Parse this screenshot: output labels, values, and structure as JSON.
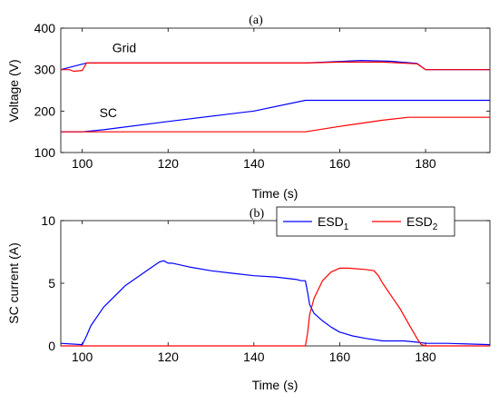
{
  "chart_data": [
    {
      "type": "line",
      "panel_label": "(a)",
      "xlabel": "Time (s)",
      "ylabel": "Voltage (V)",
      "xlim": [
        95,
        195
      ],
      "ylim": [
        100,
        400
      ],
      "xticks": [
        100,
        120,
        140,
        160,
        180
      ],
      "yticks": [
        100,
        200,
        300,
        400
      ],
      "xtick_labels": [
        "100",
        "120",
        "140",
        "160",
        "180"
      ],
      "ytick_labels": [
        "100",
        "200",
        "300",
        "400"
      ],
      "annotations": [
        {
          "text": "Grid",
          "x": 107,
          "y": 342
        },
        {
          "text": "SC",
          "x": 104,
          "y": 185
        }
      ],
      "series": [
        {
          "color": "#0000ff",
          "x": [
            95,
            101,
            152,
            165,
            172,
            178,
            180,
            195
          ],
          "y": [
            300,
            316,
            316,
            322,
            320,
            315,
            300,
            300
          ]
        },
        {
          "color": "#ff0000",
          "x": [
            95,
            97,
            98,
            100,
            101,
            152,
            160,
            170,
            178,
            180,
            195
          ],
          "y": [
            300,
            300,
            296,
            298,
            316,
            316,
            318,
            318,
            314,
            300,
            300
          ]
        },
        {
          "color": "#0000ff",
          "x": [
            95,
            100,
            105,
            120,
            140,
            152,
            195
          ],
          "y": [
            150,
            150,
            155,
            175,
            200,
            226,
            226
          ]
        },
        {
          "color": "#ff0000",
          "x": [
            95,
            152,
            160,
            170,
            176,
            195
          ],
          "y": [
            150,
            150,
            163,
            178,
            185,
            185
          ]
        }
      ]
    },
    {
      "type": "line",
      "panel_label": "(b)",
      "xlabel": "Time (s)",
      "ylabel": "SC current (A)",
      "xlim": [
        95,
        195
      ],
      "ylim": [
        0,
        10
      ],
      "xticks": [
        100,
        120,
        140,
        160,
        180
      ],
      "yticks": [
        0,
        5,
        10
      ],
      "xtick_labels": [
        "100",
        "120",
        "140",
        "160",
        "180"
      ],
      "ytick_labels": [
        "0",
        "5",
        "10"
      ],
      "legend": {
        "placement": "top-right",
        "entries": [
          {
            "base": "ESD",
            "sub": "1",
            "color": "#0000ff"
          },
          {
            "base": "ESD",
            "sub": "2",
            "color": "#ff0000"
          }
        ]
      },
      "series": [
        {
          "name": "ESD1",
          "color": "#0000ff",
          "x": [
            95,
            100,
            101,
            102,
            105,
            110,
            115,
            118,
            119,
            120,
            121,
            125,
            130,
            135,
            140,
            145,
            150,
            151,
            152,
            152.5,
            153,
            154,
            156,
            158,
            160,
            163,
            166,
            170,
            175,
            178,
            180,
            185,
            195
          ],
          "y": [
            0.2,
            0.1,
            0.8,
            1.6,
            3.1,
            4.8,
            6.0,
            6.7,
            6.8,
            6.6,
            6.6,
            6.3,
            6.0,
            5.8,
            5.6,
            5.5,
            5.3,
            5.2,
            5.2,
            4.3,
            3.3,
            2.6,
            2.0,
            1.5,
            1.1,
            0.8,
            0.6,
            0.4,
            0.4,
            0.3,
            0.2,
            0.2,
            0.1
          ]
        },
        {
          "name": "ESD2",
          "color": "#ff0000",
          "x": [
            95,
            152,
            152.5,
            153,
            154,
            156,
            158,
            160,
            162,
            166,
            168,
            169,
            170,
            172,
            174,
            175,
            176,
            177,
            178,
            179,
            180,
            195
          ],
          "y": [
            0,
            0,
            1.0,
            2.5,
            3.8,
            5.2,
            5.9,
            6.2,
            6.2,
            6.1,
            6.0,
            5.6,
            5.0,
            4.0,
            3.0,
            2.4,
            1.8,
            1.2,
            0.6,
            0.1,
            0,
            0
          ]
        }
      ]
    }
  ]
}
